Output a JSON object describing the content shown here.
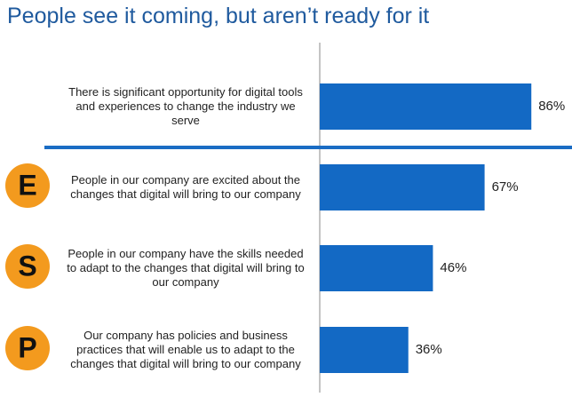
{
  "chart_data": {
    "type": "bar",
    "orientation": "horizontal",
    "title": "People see it coming, but aren’t ready for it",
    "categories": [
      "There is significant opportunity for digital tools and experiences to change the industry we serve",
      "People in our company are excited about the changes that digital will bring to our company",
      "People in our company have the skills needed to adapt to the changes that digital will bring to our company",
      "Our company has policies and business practices that will enable us to adapt to the changes that digital will bring to our company"
    ],
    "badges": [
      null,
      "E",
      "S",
      "P"
    ],
    "values": [
      86,
      67,
      46,
      36
    ],
    "value_labels": [
      "86%",
      "67%",
      "46%",
      "36%"
    ],
    "color": "#1369c4",
    "badge_color": "#f39a1e"
  }
}
